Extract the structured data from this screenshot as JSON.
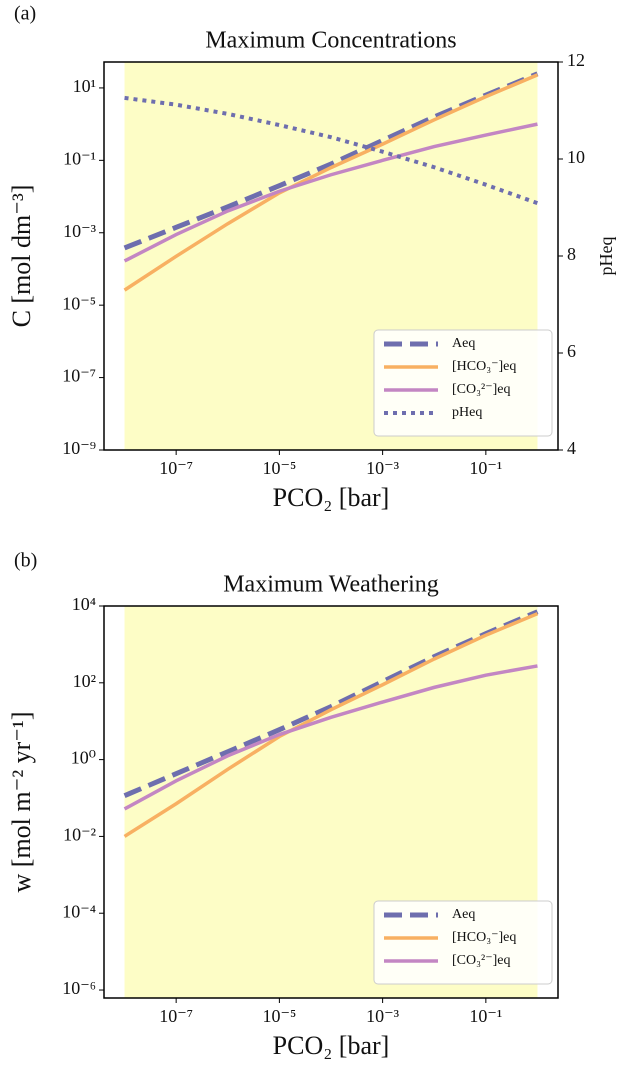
{
  "chart_data": [
    {
      "type": "line",
      "panel": "(a)",
      "title": "Maximum Concentrations",
      "xlabel": "PCO₂ [bar]",
      "ylabel": "C [mol dm⁻³]",
      "y2label": "pHeq",
      "xscale": "log",
      "yscale": "log",
      "legend": "lower right",
      "shaded_xrange": [
        1e-08,
        1
      ],
      "shade_color": "#fdfdc6",
      "y2color": "#8080c8",
      "xlim": [
        4e-09,
        2.5
      ],
      "ylim": [
        1e-09,
        52
      ],
      "y2lim": [
        4,
        12
      ],
      "xticks": [
        {
          "value": 1e-07,
          "label": "10⁻⁷"
        },
        {
          "value": 1e-05,
          "label": "10⁻⁵"
        },
        {
          "value": 0.001,
          "label": "10⁻³"
        },
        {
          "value": 0.1,
          "label": "10⁻¹"
        }
      ],
      "yticks": [
        {
          "value": 1e-09,
          "label": "10⁻⁹"
        },
        {
          "value": 1e-07,
          "label": "10⁻⁷"
        },
        {
          "value": 1e-05,
          "label": "10⁻⁵"
        },
        {
          "value": 0.001,
          "label": "10⁻³"
        },
        {
          "value": 0.1,
          "label": "10⁻¹"
        },
        {
          "value": 10,
          "label": "10¹"
        }
      ],
      "y2ticks": [
        4,
        6,
        8,
        10,
        12
      ],
      "x": [
        1e-08,
        1e-07,
        1e-06,
        1e-05,
        0.0001,
        0.001,
        0.01,
        0.1,
        1
      ],
      "series": [
        {
          "name": "Aeq",
          "color": "#6e6eae",
          "style": "dashed",
          "values": [
            0.00038,
            0.00141,
            0.0052,
            0.02,
            0.079,
            0.355,
            1.58,
            6.3,
            24.5
          ]
        },
        {
          "name": "[HCO₃⁻]eq",
          "color": "#f8b062",
          "style": "solid",
          "values": [
            2.6e-05,
            0.000224,
            0.00178,
            0.0126,
            0.063,
            0.28,
            1.32,
            5.75,
            22.9
          ]
        },
        {
          "name": "[CO₃²⁻]eq",
          "color": "#c386c3",
          "style": "solid",
          "values": [
            0.000166,
            0.00089,
            0.004,
            0.014,
            0.04,
            0.1,
            0.24,
            0.5,
            1.0
          ]
        },
        {
          "name": "pHeq",
          "color": "#6e6eae",
          "style": "dotted",
          "axis": "y2",
          "values": [
            11.26,
            11.12,
            10.93,
            10.7,
            10.45,
            10.15,
            9.83,
            9.47,
            9.09
          ]
        }
      ]
    },
    {
      "type": "line",
      "panel": "(b)",
      "title": "Maximum Weathering",
      "xlabel": "PCO₂ [bar]",
      "ylabel": "w [mol m⁻² yr⁻¹]",
      "xscale": "log",
      "yscale": "log",
      "legend": "lower right",
      "shaded_xrange": [
        1e-08,
        1
      ],
      "shade_color": "#fdfdc6",
      "xlim": [
        4e-09,
        2.5
      ],
      "ylim": [
        6.2e-07,
        10000
      ],
      "xticks": [
        {
          "value": 1e-07,
          "label": "10⁻⁷"
        },
        {
          "value": 1e-05,
          "label": "10⁻⁵"
        },
        {
          "value": 0.001,
          "label": "10⁻³"
        },
        {
          "value": 0.1,
          "label": "10⁻¹"
        }
      ],
      "yticks": [
        {
          "value": 1e-06,
          "label": "10⁻⁶"
        },
        {
          "value": 0.0001,
          "label": "10⁻⁴"
        },
        {
          "value": 0.01,
          "label": "10⁻²"
        },
        {
          "value": 1,
          "label": "10⁰"
        },
        {
          "value": 100,
          "label": "10²"
        },
        {
          "value": 10000,
          "label": "10⁴"
        }
      ],
      "x": [
        1e-08,
        1e-07,
        1e-06,
        1e-05,
        0.0001,
        0.001,
        0.01,
        0.1,
        1
      ],
      "series": [
        {
          "name": "Aeq",
          "color": "#6e6eae",
          "style": "dashed",
          "values": [
            0.115,
            0.43,
            1.6,
            6.0,
            24,
            107,
            479,
            1905,
            7079
          ]
        },
        {
          "name": "[HCO₃⁻]eq",
          "color": "#f8b062",
          "style": "solid",
          "values": [
            0.01,
            0.071,
            0.56,
            4.0,
            20,
            89,
            417,
            1738,
            6310
          ]
        },
        {
          "name": "[CO₃²⁻]eq",
          "color": "#c386c3",
          "style": "solid",
          "values": [
            0.052,
            0.28,
            1.26,
            4.5,
            12.6,
            31.6,
            76,
            158,
            275
          ]
        }
      ]
    }
  ]
}
